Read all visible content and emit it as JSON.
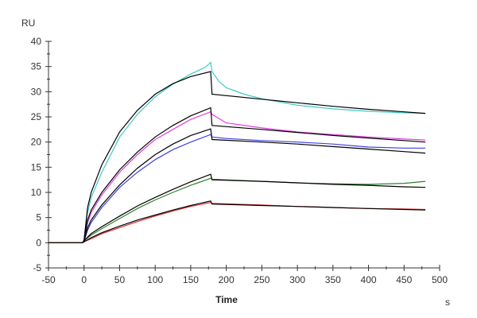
{
  "chart_data": {
    "type": "line",
    "title": "",
    "ylabel": "RU",
    "xlabel": "Time",
    "x_unit": "s",
    "xlim": [
      -50,
      500
    ],
    "ylim": [
      -5,
      40
    ],
    "xticks": [
      -50,
      0,
      50,
      100,
      150,
      200,
      250,
      300,
      350,
      400,
      450,
      500
    ],
    "yticks": [
      -5,
      0,
      5,
      10,
      15,
      20,
      25,
      30,
      35,
      40
    ],
    "grid": false,
    "legend": "none",
    "series": [
      {
        "name": "cyan",
        "color": "#40c8c8",
        "points": [
          [
            -50,
            0
          ],
          [
            -2,
            0
          ],
          [
            0,
            0.5
          ],
          [
            5,
            6
          ],
          [
            10,
            9
          ],
          [
            25,
            14
          ],
          [
            50,
            21
          ],
          [
            75,
            25.5
          ],
          [
            100,
            29
          ],
          [
            125,
            31.5
          ],
          [
            150,
            33.5
          ],
          [
            170,
            34.8
          ],
          [
            178,
            35.8
          ],
          [
            180,
            34
          ],
          [
            190,
            32
          ],
          [
            200,
            30.8
          ],
          [
            225,
            29.5
          ],
          [
            250,
            28.6
          ],
          [
            300,
            27.3
          ],
          [
            350,
            26.6
          ],
          [
            400,
            26.1
          ],
          [
            450,
            25.8
          ],
          [
            480,
            25.7
          ]
        ]
      },
      {
        "name": "fit-1",
        "color": "#000000",
        "points": [
          [
            -50,
            0
          ],
          [
            -2,
            0
          ],
          [
            0,
            0.5
          ],
          [
            5,
            7
          ],
          [
            10,
            10
          ],
          [
            25,
            15.5
          ],
          [
            50,
            22
          ],
          [
            75,
            26.3
          ],
          [
            100,
            29.5
          ],
          [
            125,
            31.6
          ],
          [
            150,
            33
          ],
          [
            178,
            34
          ],
          [
            180,
            29.5
          ],
          [
            250,
            28.5
          ],
          [
            300,
            27.8
          ],
          [
            350,
            27.1
          ],
          [
            400,
            26.5
          ],
          [
            450,
            26
          ],
          [
            480,
            25.7
          ]
        ]
      },
      {
        "name": "magenta",
        "color": "#e040e0",
        "points": [
          [
            -50,
            0
          ],
          [
            -2,
            0
          ],
          [
            0,
            0.5
          ],
          [
            5,
            4
          ],
          [
            10,
            6
          ],
          [
            25,
            9.5
          ],
          [
            50,
            14
          ],
          [
            75,
            17.5
          ],
          [
            100,
            20.5
          ],
          [
            125,
            22.5
          ],
          [
            150,
            24.5
          ],
          [
            178,
            26
          ],
          [
            180,
            25.5
          ],
          [
            200,
            23.8
          ],
          [
            250,
            22.8
          ],
          [
            300,
            22
          ],
          [
            350,
            21.5
          ],
          [
            400,
            21
          ],
          [
            450,
            20.6
          ],
          [
            480,
            20.4
          ]
        ]
      },
      {
        "name": "fit-2",
        "color": "#000000",
        "points": [
          [
            -50,
            0
          ],
          [
            -2,
            0
          ],
          [
            0,
            0.5
          ],
          [
            5,
            4.5
          ],
          [
            10,
            6.5
          ],
          [
            25,
            10
          ],
          [
            50,
            14.5
          ],
          [
            75,
            18
          ],
          [
            100,
            21
          ],
          [
            125,
            23.3
          ],
          [
            150,
            25.2
          ],
          [
            178,
            26.8
          ],
          [
            180,
            23.3
          ],
          [
            250,
            22.5
          ],
          [
            300,
            21.9
          ],
          [
            350,
            21.3
          ],
          [
            400,
            20.8
          ],
          [
            450,
            20.3
          ],
          [
            480,
            20
          ]
        ]
      },
      {
        "name": "blue",
        "color": "#4040e0",
        "points": [
          [
            -50,
            0
          ],
          [
            -2,
            0
          ],
          [
            0,
            0.3
          ],
          [
            5,
            2.5
          ],
          [
            10,
            4
          ],
          [
            25,
            7
          ],
          [
            50,
            11
          ],
          [
            75,
            14
          ],
          [
            100,
            16.5
          ],
          [
            125,
            18.5
          ],
          [
            150,
            20
          ],
          [
            178,
            21.5
          ],
          [
            180,
            21
          ],
          [
            200,
            20.7
          ],
          [
            250,
            20.3
          ],
          [
            300,
            20
          ],
          [
            350,
            19.6
          ],
          [
            400,
            19
          ],
          [
            450,
            18.8
          ],
          [
            480,
            18.8
          ]
        ]
      },
      {
        "name": "fit-3",
        "color": "#000000",
        "points": [
          [
            -50,
            0
          ],
          [
            -2,
            0
          ],
          [
            0,
            0.3
          ],
          [
            5,
            3
          ],
          [
            10,
            4.5
          ],
          [
            25,
            7.5
          ],
          [
            50,
            11.5
          ],
          [
            75,
            14.8
          ],
          [
            100,
            17.5
          ],
          [
            125,
            19.6
          ],
          [
            150,
            21.3
          ],
          [
            178,
            22.6
          ],
          [
            180,
            20.5
          ],
          [
            250,
            20
          ],
          [
            300,
            19.6
          ],
          [
            350,
            19.1
          ],
          [
            400,
            18.6
          ],
          [
            450,
            18.1
          ],
          [
            480,
            17.8
          ]
        ]
      },
      {
        "name": "green",
        "color": "#308030",
        "points": [
          [
            -50,
            0
          ],
          [
            -2,
            0
          ],
          [
            0,
            0.4
          ],
          [
            10,
            1.5
          ],
          [
            25,
            2.8
          ],
          [
            50,
            4.8
          ],
          [
            75,
            6.8
          ],
          [
            100,
            8.5
          ],
          [
            125,
            10
          ],
          [
            150,
            11.4
          ],
          [
            178,
            12.8
          ],
          [
            180,
            12.6
          ],
          [
            250,
            12.2
          ],
          [
            300,
            11.9
          ],
          [
            350,
            11.7
          ],
          [
            400,
            11.6
          ],
          [
            450,
            11.8
          ],
          [
            480,
            12.2
          ]
        ]
      },
      {
        "name": "fit-4",
        "color": "#000000",
        "points": [
          [
            -50,
            0
          ],
          [
            -2,
            0
          ],
          [
            0,
            0.4
          ],
          [
            10,
            1.8
          ],
          [
            25,
            3.2
          ],
          [
            50,
            5.3
          ],
          [
            75,
            7.3
          ],
          [
            100,
            9
          ],
          [
            125,
            10.6
          ],
          [
            150,
            12.1
          ],
          [
            178,
            13.6
          ],
          [
            180,
            12.5
          ],
          [
            250,
            12.2
          ],
          [
            300,
            11.9
          ],
          [
            350,
            11.6
          ],
          [
            400,
            11.4
          ],
          [
            450,
            11.1
          ],
          [
            480,
            11
          ]
        ]
      },
      {
        "name": "red",
        "color": "#e03030",
        "points": [
          [
            -50,
            0
          ],
          [
            -2,
            0
          ],
          [
            0,
            0.2
          ],
          [
            10,
            0.8
          ],
          [
            25,
            1.8
          ],
          [
            50,
            3
          ],
          [
            75,
            4.2
          ],
          [
            100,
            5.3
          ],
          [
            125,
            6.3
          ],
          [
            150,
            7.2
          ],
          [
            178,
            8
          ],
          [
            180,
            7.8
          ],
          [
            250,
            7.5
          ],
          [
            300,
            7.2
          ],
          [
            350,
            7
          ],
          [
            400,
            6.8
          ],
          [
            450,
            6.7
          ],
          [
            480,
            6.6
          ]
        ]
      },
      {
        "name": "fit-5",
        "color": "#000000",
        "points": [
          [
            -50,
            0
          ],
          [
            -2,
            0
          ],
          [
            0,
            0.2
          ],
          [
            10,
            1
          ],
          [
            25,
            2
          ],
          [
            50,
            3.3
          ],
          [
            75,
            4.5
          ],
          [
            100,
            5.5
          ],
          [
            125,
            6.5
          ],
          [
            150,
            7.4
          ],
          [
            178,
            8.3
          ],
          [
            180,
            7.7
          ],
          [
            250,
            7.4
          ],
          [
            300,
            7.2
          ],
          [
            350,
            7
          ],
          [
            400,
            6.8
          ],
          [
            450,
            6.6
          ],
          [
            480,
            6.5
          ]
        ]
      }
    ]
  }
}
